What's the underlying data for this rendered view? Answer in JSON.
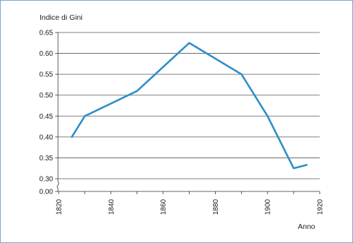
{
  "chart_data": {
    "type": "line",
    "ylabel": "Indice di Gini",
    "xlabel": "Anno",
    "xlim": [
      1820,
      1920
    ],
    "x_ticks": [
      "1820",
      "1840",
      "1860",
      "1880",
      "1900",
      "1920"
    ],
    "y_ticks": [
      "0.65",
      "0.60",
      "0.55",
      "0.50",
      "0.45",
      "0.40",
      "0.35",
      "0.30",
      "0.00"
    ],
    "ylim": [
      0.3,
      0.65
    ],
    "y_axis_break": true,
    "grid": "horizontal",
    "series": [
      {
        "color": "#2b8fc7",
        "x": [
          1825,
          1830,
          1850,
          1870,
          1890,
          1900,
          1910,
          1915
        ],
        "y": [
          0.4,
          0.45,
          0.51,
          0.625,
          0.55,
          0.45,
          0.325,
          0.333
        ]
      }
    ]
  }
}
